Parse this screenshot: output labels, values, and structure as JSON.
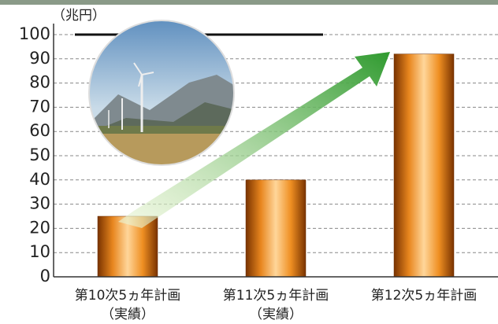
{
  "chart_data": {
    "type": "bar",
    "y_unit": "（兆円）",
    "categories": [
      "第10次5ヵ年計画",
      "第11次5ヵ年計画",
      "第12次5ヵ年計画"
    ],
    "category_sublabels": [
      "（実績）",
      "（実績）",
      null
    ],
    "values": [
      25,
      40,
      92
    ],
    "color": "#f39a2a",
    "ylim": [
      0,
      100
    ],
    "yticks": [
      0,
      10,
      20,
      30,
      40,
      50,
      60,
      70,
      80,
      90,
      100
    ],
    "grid": true
  }
}
